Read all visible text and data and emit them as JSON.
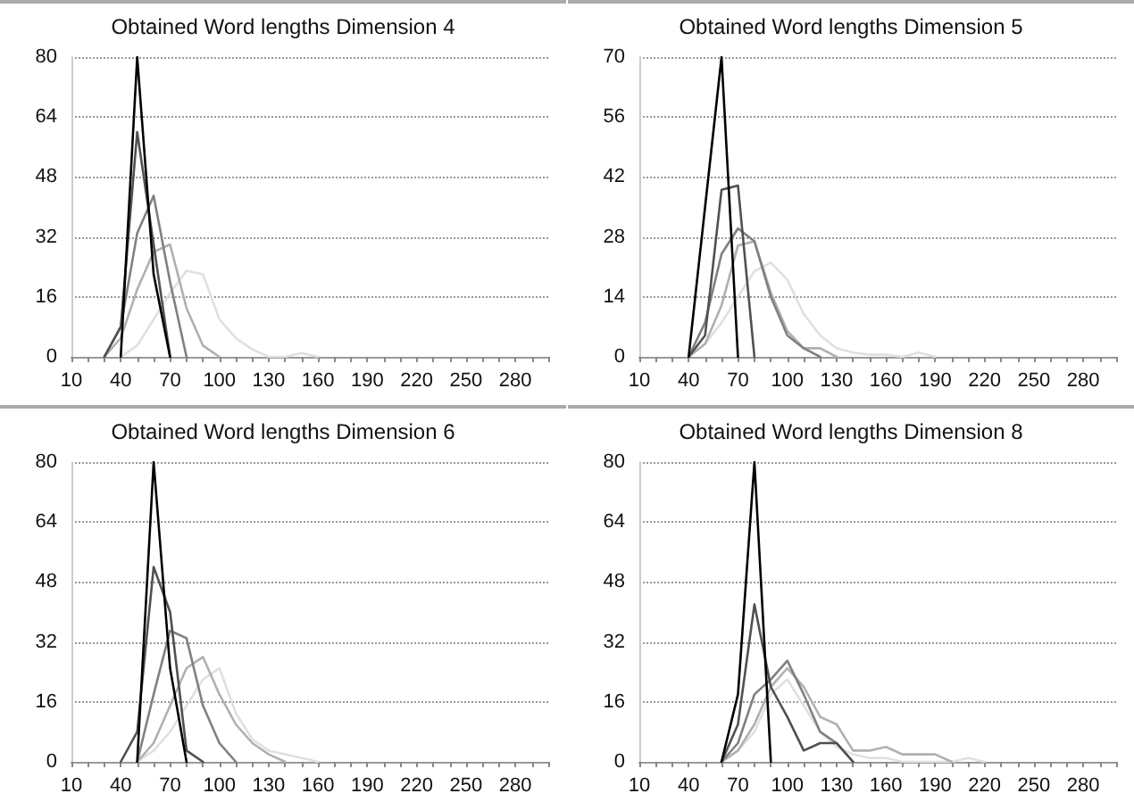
{
  "chart_data": [
    {
      "type": "line",
      "title": "Obtained Word lengths Dimension 4",
      "xlim": [
        10,
        300
      ],
      "xticks": [
        10,
        {
          "value": 20,
          "label": null
        },
        {
          "value": 30,
          "label": null
        },
        40,
        {
          "value": 50,
          "label": null
        },
        {
          "value": 60,
          "label": null
        },
        70,
        {
          "value": 80,
          "label": null
        },
        {
          "value": 90,
          "label": null
        },
        100,
        {
          "value": 110,
          "label": null
        },
        {
          "value": 120,
          "label": null
        },
        130,
        {
          "value": 140,
          "label": null
        },
        {
          "value": 150,
          "label": null
        },
        160,
        {
          "value": 170,
          "label": null
        },
        {
          "value": 180,
          "label": null
        },
        190,
        {
          "value": 200,
          "label": null
        },
        {
          "value": 210,
          "label": null
        },
        220,
        {
          "value": 230,
          "label": null
        },
        {
          "value": 240,
          "label": null
        },
        250,
        {
          "value": 260,
          "label": null
        },
        {
          "value": 270,
          "label": null
        },
        280,
        {
          "value": 290,
          "label": null
        },
        {
          "value": 300,
          "label": null
        }
      ],
      "ylim": [
        0,
        80
      ],
      "yticks": [
        0,
        16,
        32,
        48,
        64,
        80
      ],
      "grid": "y",
      "marker": "none",
      "series": [
        {
          "color": "#e0e0e0",
          "x": [
            40,
            50,
            60,
            70,
            80,
            90,
            100,
            110,
            120,
            130,
            140,
            150,
            160
          ],
          "values": [
            0,
            3,
            10,
            17,
            23,
            22,
            10,
            5,
            2,
            0,
            0,
            1,
            0
          ]
        },
        {
          "color": "#b0b0b0",
          "x": [
            30,
            40,
            50,
            60,
            70,
            80,
            90,
            100
          ],
          "values": [
            0,
            5,
            18,
            28,
            30,
            13,
            3,
            0
          ]
        },
        {
          "color": "#808080",
          "x": [
            30,
            40,
            50,
            60,
            70,
            80
          ],
          "values": [
            0,
            8,
            33,
            43,
            20,
            0
          ]
        },
        {
          "color": "#505050",
          "x": [
            30,
            40,
            50,
            60,
            70
          ],
          "values": [
            0,
            8,
            60,
            30,
            0
          ]
        },
        {
          "color": "#000000",
          "x": [
            40,
            50,
            60,
            70
          ],
          "values": [
            0,
            80,
            22,
            0
          ]
        }
      ]
    },
    {
      "type": "line",
      "title": "Obtained Word lengths Dimension 5",
      "xlim": [
        10,
        300
      ],
      "xticks": [
        10,
        {
          "value": 20,
          "label": null
        },
        {
          "value": 30,
          "label": null
        },
        40,
        {
          "value": 50,
          "label": null
        },
        {
          "value": 60,
          "label": null
        },
        70,
        {
          "value": 80,
          "label": null
        },
        {
          "value": 90,
          "label": null
        },
        100,
        {
          "value": 110,
          "label": null
        },
        {
          "value": 120,
          "label": null
        },
        130,
        {
          "value": 140,
          "label": null
        },
        {
          "value": 150,
          "label": null
        },
        160,
        {
          "value": 170,
          "label": null
        },
        {
          "value": 180,
          "label": null
        },
        190,
        {
          "value": 200,
          "label": null
        },
        {
          "value": 210,
          "label": null
        },
        220,
        {
          "value": 230,
          "label": null
        },
        {
          "value": 240,
          "label": null
        },
        250,
        {
          "value": 260,
          "label": null
        },
        {
          "value": 270,
          "label": null
        },
        280,
        {
          "value": 290,
          "label": null
        },
        {
          "value": 300,
          "label": null
        }
      ],
      "ylim": [
        0,
        70
      ],
      "yticks": [
        0,
        14,
        28,
        42,
        56,
        70
      ],
      "grid": "y",
      "marker": "none",
      "series": [
        {
          "color": "#e0e0e0",
          "x": [
            40,
            50,
            60,
            70,
            80,
            90,
            100,
            110,
            120,
            130,
            140,
            150,
            160,
            170,
            180,
            190
          ],
          "values": [
            0,
            3,
            8,
            14,
            20,
            22,
            18,
            10,
            5,
            2,
            1,
            0.5,
            0.5,
            0,
            1,
            0
          ]
        },
        {
          "color": "#b0b0b0",
          "x": [
            40,
            50,
            60,
            70,
            80,
            90,
            100,
            110,
            120,
            130
          ],
          "values": [
            0,
            3,
            12,
            26,
            27,
            15,
            6,
            2,
            2,
            0
          ]
        },
        {
          "color": "#808080",
          "x": [
            40,
            50,
            60,
            70,
            80,
            90,
            100,
            110,
            120
          ],
          "values": [
            0,
            8,
            24,
            30,
            27,
            14,
            5,
            2,
            0
          ]
        },
        {
          "color": "#505050",
          "x": [
            40,
            50,
            60,
            70,
            80
          ],
          "values": [
            0,
            5,
            39,
            40,
            0
          ]
        },
        {
          "color": "#000000",
          "x": [
            40,
            50,
            60,
            70
          ],
          "values": [
            0,
            35,
            70,
            0
          ]
        }
      ]
    },
    {
      "type": "line",
      "title": "Obtained Word lengths Dimension 6",
      "xlim": [
        10,
        300
      ],
      "xticks": [
        10,
        {
          "value": 20,
          "label": null
        },
        {
          "value": 30,
          "label": null
        },
        40,
        {
          "value": 50,
          "label": null
        },
        {
          "value": 60,
          "label": null
        },
        70,
        {
          "value": 80,
          "label": null
        },
        {
          "value": 90,
          "label": null
        },
        100,
        {
          "value": 110,
          "label": null
        },
        {
          "value": 120,
          "label": null
        },
        130,
        {
          "value": 140,
          "label": null
        },
        {
          "value": 150,
          "label": null
        },
        160,
        {
          "value": 170,
          "label": null
        },
        {
          "value": 180,
          "label": null
        },
        190,
        {
          "value": 200,
          "label": null
        },
        {
          "value": 210,
          "label": null
        },
        220,
        {
          "value": 230,
          "label": null
        },
        {
          "value": 240,
          "label": null
        },
        250,
        {
          "value": 260,
          "label": null
        },
        {
          "value": 270,
          "label": null
        },
        280,
        {
          "value": 290,
          "label": null
        },
        {
          "value": 300,
          "label": null
        }
      ],
      "ylim": [
        0,
        80
      ],
      "yticks": [
        0,
        16,
        32,
        48,
        64,
        80
      ],
      "grid": "y",
      "marker": "none",
      "series": [
        {
          "color": "#e0e0e0",
          "x": [
            50,
            60,
            70,
            80,
            90,
            100,
            110,
            120,
            130,
            140,
            150,
            160
          ],
          "values": [
            0,
            3,
            8,
            15,
            22,
            25,
            13,
            6,
            3,
            2,
            1,
            0
          ]
        },
        {
          "color": "#b0b0b0",
          "x": [
            50,
            60,
            70,
            80,
            90,
            100,
            110,
            120,
            130,
            140
          ],
          "values": [
            0,
            5,
            15,
            25,
            28,
            18,
            10,
            5,
            2,
            0
          ]
        },
        {
          "color": "#808080",
          "x": [
            50,
            60,
            70,
            80,
            90,
            100,
            110
          ],
          "values": [
            0,
            18,
            35,
            33,
            15,
            5,
            0
          ]
        },
        {
          "color": "#505050",
          "x": [
            40,
            50,
            60,
            70,
            80,
            90
          ],
          "values": [
            0,
            8,
            52,
            40,
            3,
            0
          ]
        },
        {
          "color": "#000000",
          "x": [
            50,
            60,
            70,
            80
          ],
          "values": [
            0,
            80,
            25,
            0
          ]
        }
      ]
    },
    {
      "type": "line",
      "title": "Obtained Word lengths Dimension 8",
      "xlim": [
        10,
        300
      ],
      "xticks": [
        10,
        {
          "value": 20,
          "label": null
        },
        {
          "value": 30,
          "label": null
        },
        40,
        {
          "value": 50,
          "label": null
        },
        {
          "value": 60,
          "label": null
        },
        70,
        {
          "value": 80,
          "label": null
        },
        {
          "value": 90,
          "label": null
        },
        100,
        {
          "value": 110,
          "label": null
        },
        {
          "value": 120,
          "label": null
        },
        130,
        {
          "value": 140,
          "label": null
        },
        {
          "value": 150,
          "label": null
        },
        160,
        {
          "value": 170,
          "label": null
        },
        {
          "value": 180,
          "label": null
        },
        190,
        {
          "value": 200,
          "label": null
        },
        {
          "value": 210,
          "label": null
        },
        220,
        {
          "value": 230,
          "label": null
        },
        {
          "value": 240,
          "label": null
        },
        250,
        {
          "value": 260,
          "label": null
        },
        {
          "value": 270,
          "label": null
        },
        280,
        {
          "value": 290,
          "label": null
        },
        {
          "value": 300,
          "label": null
        }
      ],
      "ylim": [
        0,
        80
      ],
      "yticks": [
        0,
        16,
        32,
        48,
        64,
        80
      ],
      "grid": "y",
      "marker": "none",
      "series": [
        {
          "color": "#e0e0e0",
          "x": [
            60,
            70,
            80,
            90,
            100,
            110,
            120,
            130,
            140,
            150,
            160,
            170,
            180,
            190,
            200,
            210,
            220
          ],
          "values": [
            0,
            3,
            8,
            18,
            22,
            15,
            8,
            4,
            2,
            1,
            1,
            0,
            0,
            0,
            0,
            1,
            0
          ]
        },
        {
          "color": "#b0b0b0",
          "x": [
            60,
            70,
            80,
            90,
            100,
            110,
            120,
            130,
            140,
            150,
            160,
            170,
            180,
            190,
            200
          ],
          "values": [
            0,
            3,
            10,
            20,
            25,
            20,
            12,
            10,
            3,
            3,
            4,
            2,
            2,
            2,
            0
          ]
        },
        {
          "color": "#808080",
          "x": [
            60,
            70,
            80,
            90,
            100,
            110,
            120,
            130,
            140
          ],
          "values": [
            0,
            5,
            18,
            22,
            27,
            18,
            8,
            5,
            0
          ]
        },
        {
          "color": "#505050",
          "x": [
            60,
            70,
            80,
            90,
            100,
            110,
            120,
            130,
            140
          ],
          "values": [
            0,
            10,
            42,
            20,
            12,
            3,
            5,
            5,
            0
          ]
        },
        {
          "color": "#000000",
          "x": [
            60,
            70,
            80,
            90
          ],
          "values": [
            0,
            18,
            80,
            0
          ]
        }
      ]
    }
  ]
}
